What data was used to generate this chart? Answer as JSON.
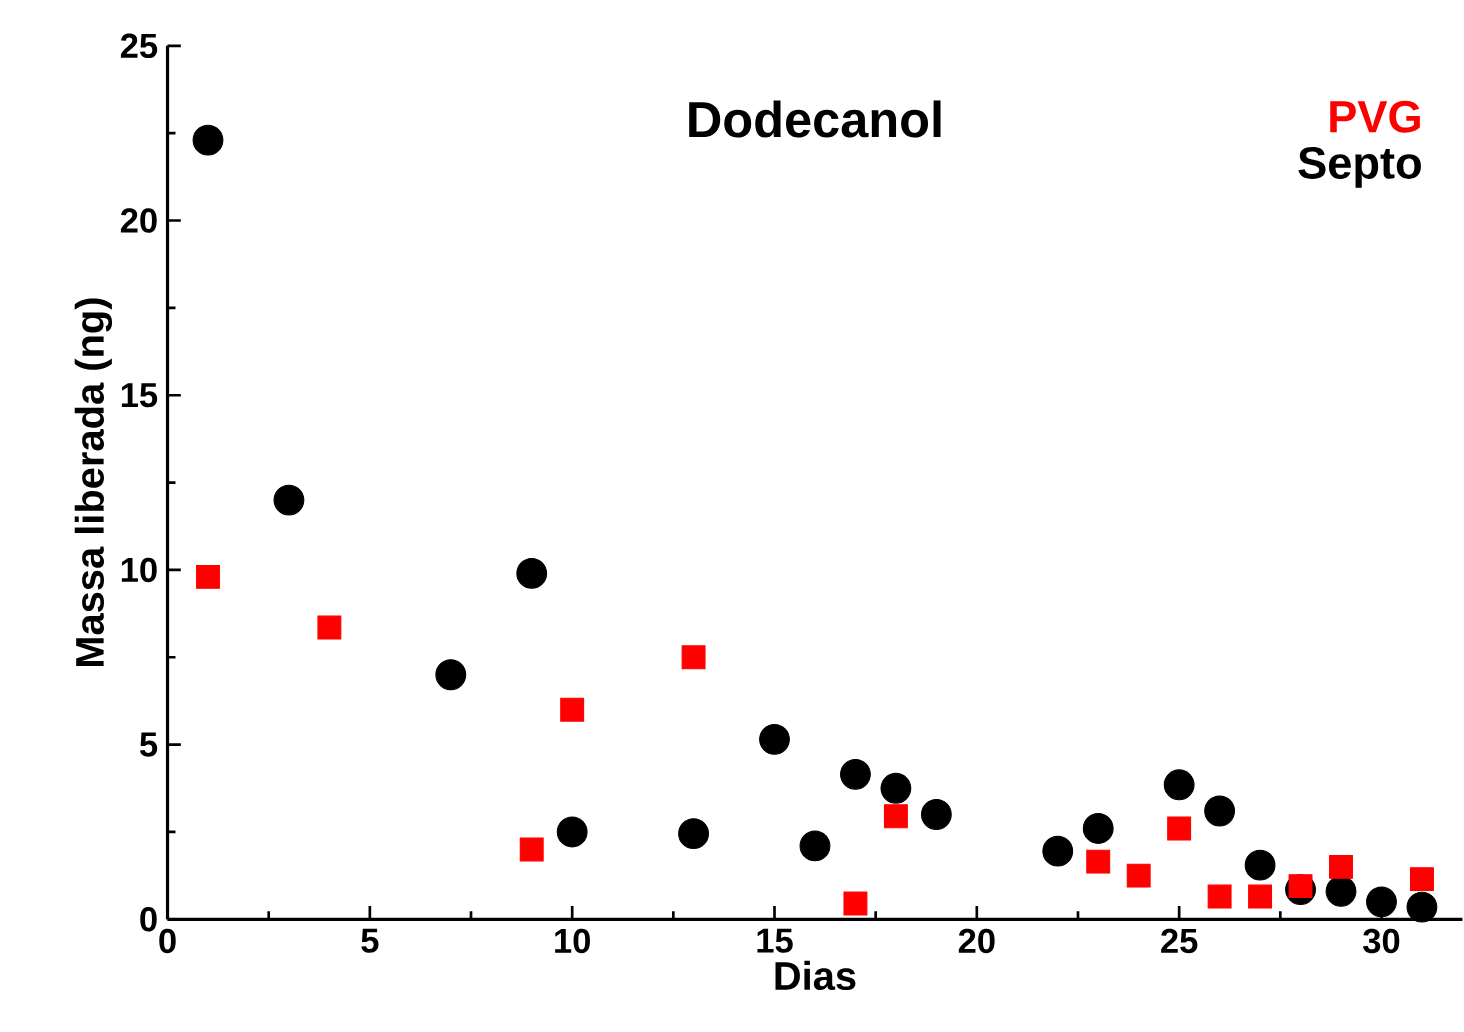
{
  "chart_data": {
    "type": "scatter",
    "title": "Dodecanol",
    "xlabel": "Dias",
    "ylabel": "Massa liberada (ng)",
    "xlim": [
      0,
      32
    ],
    "xticks": [
      0,
      5,
      10,
      15,
      20,
      25,
      30
    ],
    "ylim": [
      0,
      25
    ],
    "yticks": [
      0,
      5,
      10,
      15,
      20,
      25
    ],
    "legend": "top right",
    "grid": false,
    "series": [
      {
        "name": "PVG",
        "color": "#ff0000",
        "marker": "square",
        "x": [
          1,
          4,
          9,
          10,
          13,
          17,
          18,
          23,
          24,
          25,
          26,
          27,
          28,
          29,
          31
        ],
        "values": [
          9.8,
          8.35,
          2.0,
          6.0,
          7.5,
          0.45,
          2.95,
          1.65,
          1.25,
          2.6,
          0.65,
          0.65,
          0.95,
          1.5,
          1.15
        ]
      },
      {
        "name": "Septo",
        "color": "#000000",
        "marker": "circle",
        "x": [
          1,
          3,
          7,
          9,
          10,
          13,
          15,
          16,
          17,
          18,
          19,
          22,
          23,
          25,
          26,
          27,
          28,
          29,
          30,
          31
        ],
        "values": [
          22.3,
          12.0,
          7.0,
          9.9,
          2.5,
          2.45,
          5.15,
          2.1,
          4.15,
          3.75,
          3.0,
          1.95,
          2.6,
          3.85,
          3.1,
          1.55,
          0.85,
          0.8,
          0.5,
          0.35
        ]
      }
    ]
  }
}
